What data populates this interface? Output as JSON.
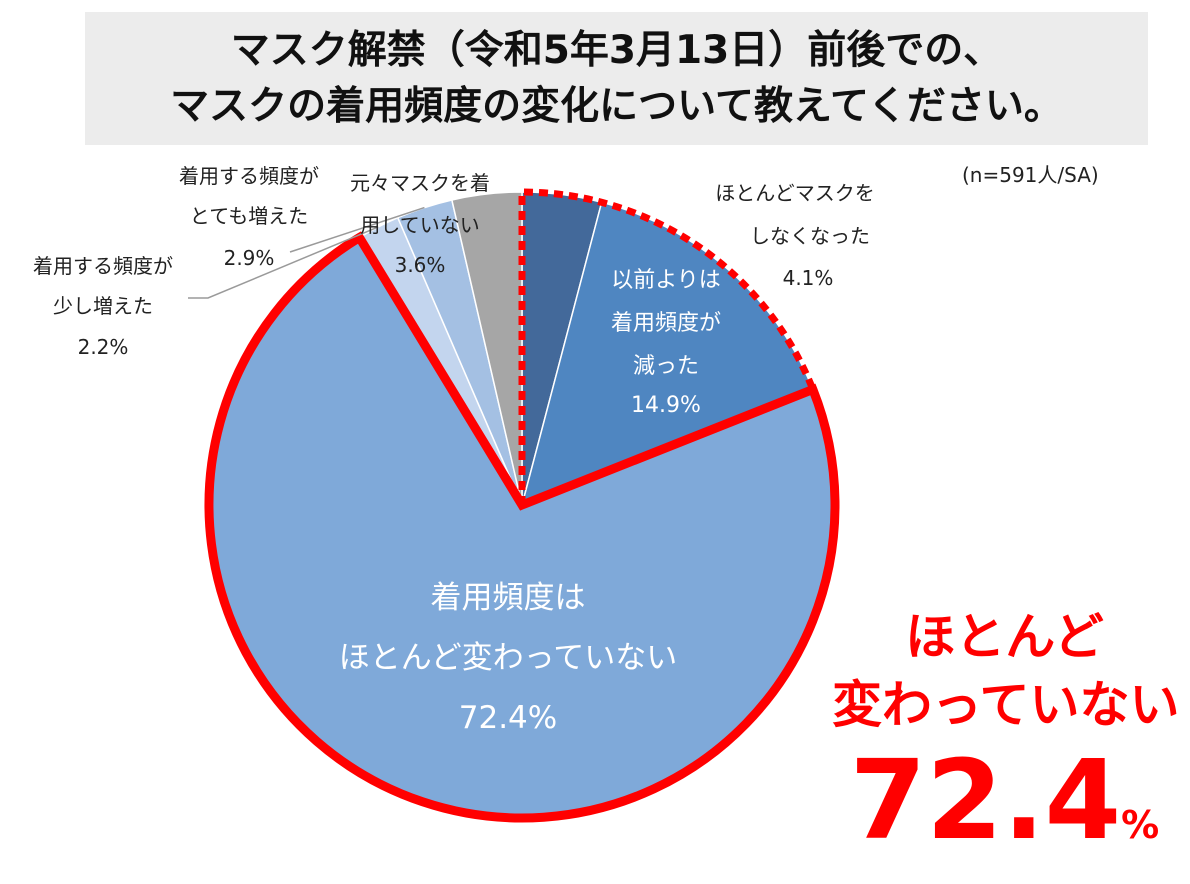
{
  "title": {
    "line1": "マスク解禁（令和5年3月13日）前後での、",
    "line2": "マスクの着用頻度の変化について教えてください。"
  },
  "note": "(n=591人/SA)",
  "highlight": {
    "line1": "ほとんど",
    "line2": "変わっていない",
    "value": "72.4",
    "unit": "%"
  },
  "colors": {
    "highlight_red": "#ff0000",
    "unchanged": "#7fa9d9",
    "decreased": "#4f86c1",
    "stopped": "#43699a",
    "never_worn": "#a6a6a6",
    "increased_a_lot": "#a4c0e3",
    "increased_slightly": "#c3d5ee"
  },
  "chart_data": {
    "type": "pie",
    "start": "12 o'clock, clockwise",
    "slices": [
      {
        "key": "stopped",
        "label_lines": [
          "ほとんどマスクを",
          "しなくなった"
        ],
        "value": 4.1,
        "value_label": "4.1%",
        "color": "#43699a"
      },
      {
        "key": "decreased",
        "label_lines": [
          "以前よりは",
          "着用頻度が",
          "減った"
        ],
        "value": 14.9,
        "value_label": "14.9%",
        "color": "#4f86c1"
      },
      {
        "key": "unchanged",
        "label_lines": [
          "着用頻度は",
          "ほとんど変わっていない"
        ],
        "value": 72.4,
        "value_label": "72.4%",
        "color": "#7fa9d9"
      },
      {
        "key": "increased_slightly",
        "label_lines": [
          "着用する頻度が",
          "少し増えた"
        ],
        "value": 2.2,
        "value_label": "2.2%",
        "color": "#c3d5ee"
      },
      {
        "key": "increased_a_lot",
        "label_lines": [
          "着用する頻度が",
          "とても増えた"
        ],
        "value": 2.9,
        "value_label": "2.9%",
        "color": "#a4c0e3"
      },
      {
        "key": "never_worn",
        "label_lines": [
          "元々マスクを着",
          "用していない"
        ],
        "value": 3.6,
        "value_label": "3.6%",
        "color": "#a6a6a6"
      }
    ]
  }
}
